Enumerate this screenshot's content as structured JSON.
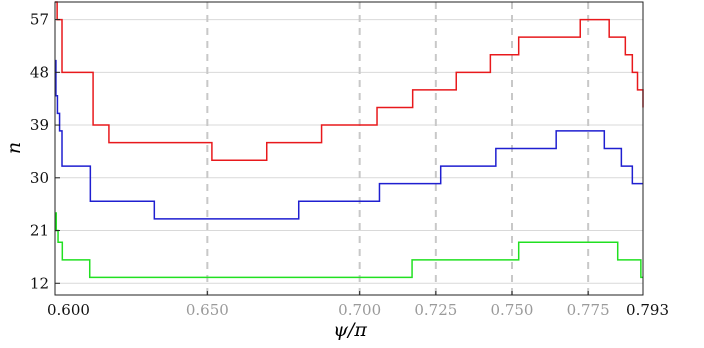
{
  "chart_data": {
    "type": "line",
    "step": true,
    "xlabel": "ψ/π",
    "ylabel": "n",
    "xlim": [
      0.6,
      0.793
    ],
    "ylim": [
      10,
      60
    ],
    "yticks": [
      12,
      21,
      30,
      39,
      48,
      57
    ],
    "ytick_labels": [
      "12",
      "21",
      "30",
      "39",
      "48",
      "57"
    ],
    "xticks": [
      0.6,
      0.65,
      0.7,
      0.725,
      0.75,
      0.775,
      0.793
    ],
    "xtick_labels": [
      "0.600",
      "0.650",
      "0.700",
      "0.725",
      "0.750",
      "0.775",
      "0.793"
    ],
    "xtick_gray": [
      false,
      true,
      true,
      true,
      true,
      true,
      false
    ],
    "vlines": [
      0.65,
      0.7,
      0.725,
      0.75,
      0.775
    ],
    "grid_y": true,
    "series": [
      {
        "color": "#e8191c",
        "x": [
          0.6,
          0.6007,
          0.6023,
          0.6055,
          0.6125,
          0.6177,
          0.6515,
          0.6695,
          0.6875,
          0.7057,
          0.7174,
          0.7317,
          0.7429,
          0.7522,
          0.7724,
          0.7819,
          0.7872,
          0.7895,
          0.7912,
          0.793
        ],
        "y": [
          60,
          57,
          48,
          48,
          39,
          36,
          33,
          36,
          39,
          42,
          45,
          48,
          51,
          54,
          57,
          54,
          51,
          48,
          45,
          42
        ]
      },
      {
        "color": "#1f1fd0",
        "x": [
          0.6,
          0.6003,
          0.6008,
          0.6015,
          0.6023,
          0.6055,
          0.6177,
          0.6636,
          0.6895,
          0.7174,
          0.7321,
          0.7507,
          0.764,
          0.7827,
          0.7895,
          0.7912,
          0.793
        ],
        "y": [
          50,
          44,
          41,
          38,
          32,
          26,
          23,
          23,
          26,
          29,
          32,
          35,
          38,
          35,
          32,
          29,
          29
        ],
        "steps": [
          [
            0.6,
            50
          ],
          [
            0.6003,
            44
          ],
          [
            0.6008,
            41
          ],
          [
            0.6015,
            38
          ],
          [
            0.6023,
            32
          ],
          [
            0.6116,
            26
          ],
          [
            0.6326,
            23
          ],
          [
            0.68,
            26
          ],
          [
            0.7065,
            29
          ],
          [
            0.7266,
            32
          ],
          [
            0.7447,
            35
          ],
          [
            0.7645,
            38
          ],
          [
            0.7803,
            35
          ],
          [
            0.7859,
            32
          ],
          [
            0.7895,
            29
          ],
          [
            0.793,
            29
          ]
        ]
      },
      {
        "color": "#21e021",
        "x": [
          0.6,
          0.6004,
          0.601,
          0.6024,
          0.6114,
          0.7172,
          0.7522,
          0.7847,
          0.7923,
          0.793
        ],
        "y": [
          24,
          21,
          19,
          16,
          13,
          13,
          16,
          19,
          16,
          13
        ],
        "steps": [
          [
            0.6,
            24
          ],
          [
            0.6004,
            21
          ],
          [
            0.601,
            19
          ],
          [
            0.6024,
            16
          ],
          [
            0.6114,
            13
          ],
          [
            0.7172,
            16
          ],
          [
            0.7522,
            19
          ],
          [
            0.7847,
            16
          ],
          [
            0.7923,
            13
          ],
          [
            0.793,
            13
          ]
        ]
      }
    ]
  }
}
